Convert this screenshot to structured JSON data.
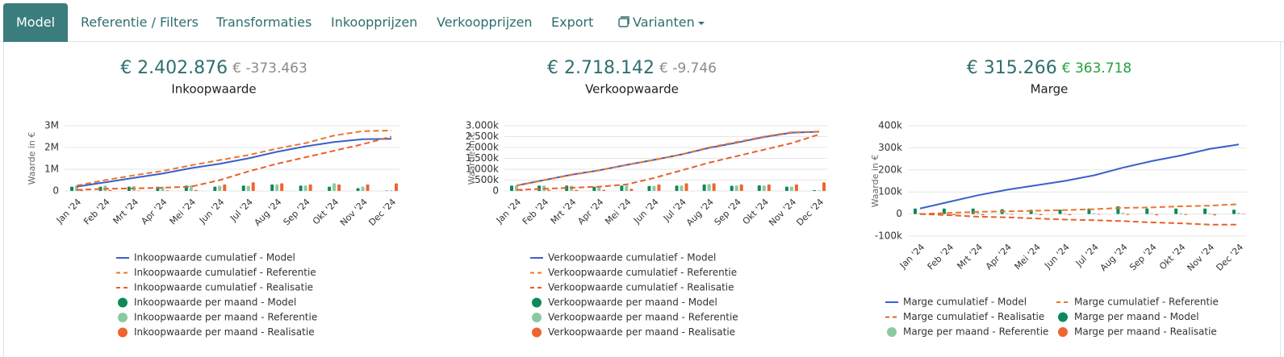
{
  "nav": {
    "tabs": [
      "Model",
      "Referentie / Filters",
      "Transformaties",
      "Inkoopprijzen",
      "Verkoopprijzen",
      "Export",
      "Varianten"
    ],
    "active": 0
  },
  "chart_data": [
    {
      "type": "line",
      "kpi": "€ 2.402.876",
      "kpi_delta": "€ -373.463",
      "kpi_delta_color": "#8a8a8a",
      "title": "Inkoopwaarde",
      "ylabel": "Waarde in €",
      "categories": [
        "Jan '24",
        "Feb '24",
        "Mrt '24",
        "Apr '24",
        "Mei '24",
        "Jun '24",
        "Jul '24",
        "Aug '24",
        "Sep '24",
        "Okt '24",
        "Nov '24",
        "Dec '24"
      ],
      "ylim": [
        0,
        3000000
      ],
      "yticks": [
        0,
        {
          "value": 1000000,
          "label": "1M"
        },
        {
          "value": 2000000,
          "label": "2M"
        },
        {
          "value": 3000000,
          "label": "3M"
        }
      ],
      "grid": true,
      "series": [
        {
          "name": "Inkoopwaarde cumulatief - Model",
          "style": "line",
          "dash": false,
          "color": "#3a60c9",
          "values": [
            200000,
            400000,
            600000,
            800000,
            1050000,
            1250000,
            1500000,
            1800000,
            2050000,
            2250000,
            2380000,
            2400000
          ]
        },
        {
          "name": "Inkoopwaarde cumulatief - Referentie",
          "style": "line",
          "dash": true,
          "color": "#e8772e",
          "values": [
            250000,
            500000,
            720000,
            920000,
            1180000,
            1420000,
            1650000,
            1950000,
            2200000,
            2550000,
            2750000,
            2780000
          ]
        },
        {
          "name": "Inkoopwaarde cumulatief - Realisatie",
          "style": "line",
          "dash": true,
          "color": "#e8602c",
          "values": [
            50000,
            100000,
            120000,
            150000,
            200000,
            500000,
            900000,
            1250000,
            1550000,
            1850000,
            2150000,
            2500000
          ]
        },
        {
          "name": "Inkoopwaarde per maand - Model",
          "style": "bar",
          "color": "#0e8a5a",
          "values": [
            200000,
            200000,
            200000,
            200000,
            250000,
            200000,
            250000,
            300000,
            250000,
            200000,
            130000,
            20000
          ]
        },
        {
          "name": "Inkoopwaarde per maand - Referentie",
          "style": "bar",
          "color": "#8cc9a0",
          "values": [
            250000,
            250000,
            220000,
            200000,
            260000,
            240000,
            230000,
            300000,
            250000,
            350000,
            200000,
            30000
          ]
        },
        {
          "name": "Inkoopwaarde per maand - Realisatie",
          "style": "bar",
          "color": "#f06430",
          "values": [
            50000,
            50000,
            20000,
            30000,
            50000,
            300000,
            400000,
            350000,
            300000,
            300000,
            300000,
            350000
          ]
        }
      ]
    },
    {
      "type": "line",
      "kpi": "€ 2.718.142",
      "kpi_delta": "€ -9.746",
      "kpi_delta_color": "#8a8a8a",
      "title": "Verkoopwaarde",
      "ylabel": "Waarde in €",
      "categories": [
        "Jan '24",
        "Feb '24",
        "Mrt '24",
        "Apr '24",
        "Mei '24",
        "Jun '24",
        "Jul '24",
        "Aug '24",
        "Sep '24",
        "Okt '24",
        "Nov '24",
        "Dec '24"
      ],
      "ylim": [
        0,
        3000000
      ],
      "yticks": [
        0,
        {
          "value": 500000,
          "label": "500k"
        },
        {
          "value": 1000000,
          "label": "1.000k"
        },
        {
          "value": 1500000,
          "label": "1.500k"
        },
        {
          "value": 2000000,
          "label": "2.000k"
        },
        {
          "value": 2500000,
          "label": "2.500k"
        },
        {
          "value": 3000000,
          "label": "3.000k"
        }
      ],
      "grid": true,
      "series": [
        {
          "name": "Verkoopwaarde cumulatief - Model",
          "style": "line",
          "dash": false,
          "color": "#3a60c9",
          "values": [
            250000,
            500000,
            750000,
            950000,
            1200000,
            1430000,
            1680000,
            1980000,
            2220000,
            2480000,
            2680000,
            2720000
          ]
        },
        {
          "name": "Verkoopwaarde cumulatief - Referentie",
          "style": "line",
          "dash": true,
          "color": "#e8772e",
          "values": [
            250000,
            500000,
            740000,
            950000,
            1200000,
            1430000,
            1680000,
            2000000,
            2250000,
            2500000,
            2700000,
            2730000
          ]
        },
        {
          "name": "Verkoopwaarde cumulatief - Realisatie",
          "style": "line",
          "dash": true,
          "color": "#e8602c",
          "values": [
            50000,
            100000,
            150000,
            200000,
            300000,
            600000,
            950000,
            1300000,
            1600000,
            1900000,
            2200000,
            2600000
          ]
        },
        {
          "name": "Verkoopwaarde per maand - Model",
          "style": "bar",
          "color": "#0e8a5a",
          "values": [
            250000,
            250000,
            250000,
            200000,
            250000,
            230000,
            250000,
            300000,
            240000,
            260000,
            200000,
            40000
          ]
        },
        {
          "name": "Verkoopwaarde per maand - Referentie",
          "style": "bar",
          "color": "#8cc9a0",
          "values": [
            250000,
            250000,
            240000,
            210000,
            250000,
            230000,
            250000,
            320000,
            250000,
            250000,
            200000,
            30000
          ]
        },
        {
          "name": "Verkoopwaarde per maand - Realisatie",
          "style": "bar",
          "color": "#f06430",
          "values": [
            50000,
            50000,
            50000,
            50000,
            100000,
            300000,
            350000,
            350000,
            300000,
            300000,
            300000,
            400000
          ]
        }
      ]
    },
    {
      "type": "line",
      "kpi": "€ 315.266",
      "kpi_delta": "€ 363.718",
      "kpi_delta_color": "#22a33a",
      "title": "Marge",
      "ylabel": "Waarde in €",
      "categories": [
        "Jan '24",
        "Feb '24",
        "Mrt '24",
        "Apr '24",
        "Mei '24",
        "Jun '24",
        "Jul '24",
        "Aug '24",
        "Sep '24",
        "Okt '24",
        "Nov '24",
        "Dec '24"
      ],
      "ylim": [
        -100000,
        400000
      ],
      "yticks": [
        {
          "value": -100000,
          "label": "-100k"
        },
        0,
        {
          "value": 100000,
          "label": "100k"
        },
        {
          "value": 200000,
          "label": "200k"
        },
        {
          "value": 300000,
          "label": "300k"
        },
        {
          "value": 400000,
          "label": "400k"
        }
      ],
      "grid": true,
      "series": [
        {
          "name": "Marge cumulatief - Model",
          "style": "line",
          "dash": false,
          "color": "#3a60c9",
          "values": [
            25000,
            55000,
            85000,
            110000,
            130000,
            150000,
            175000,
            210000,
            240000,
            265000,
            295000,
            315000
          ]
        },
        {
          "name": "Marge cumulatief - Referentie",
          "style": "line",
          "dash": true,
          "color": "#e8772e",
          "values": [
            0,
            5000,
            10000,
            12000,
            15000,
            18000,
            22000,
            28000,
            30000,
            35000,
            38000,
            45000
          ]
        },
        {
          "name": "Marge cumulatief - Realisatie",
          "style": "line",
          "dash": true,
          "color": "#e8602c",
          "values": [
            0,
            -5000,
            -12000,
            -15000,
            -20000,
            -25000,
            -28000,
            -32000,
            -38000,
            -42000,
            -48000,
            -48000
          ]
        },
        {
          "name": "Marge per maand - Model",
          "style": "bar",
          "color": "#0e8a5a",
          "values": [
            25000,
            25000,
            25000,
            22000,
            20000,
            20000,
            25000,
            35000,
            25000,
            25000,
            25000,
            20000
          ]
        },
        {
          "name": "Marge per maand - Referentie",
          "style": "bar",
          "color": "#8cc9a0",
          "values": [
            5000,
            5000,
            5000,
            3000,
            3000,
            3000,
            4000,
            6000,
            3000,
            4000,
            3000,
            5000
          ]
        },
        {
          "name": "Marge per maand - Realisatie",
          "style": "bar",
          "color": "#f06430",
          "values": [
            0,
            -5000,
            -6000,
            -3000,
            -5000,
            -5000,
            -3000,
            -4000,
            -6000,
            -4000,
            -6000,
            0
          ]
        }
      ]
    }
  ]
}
